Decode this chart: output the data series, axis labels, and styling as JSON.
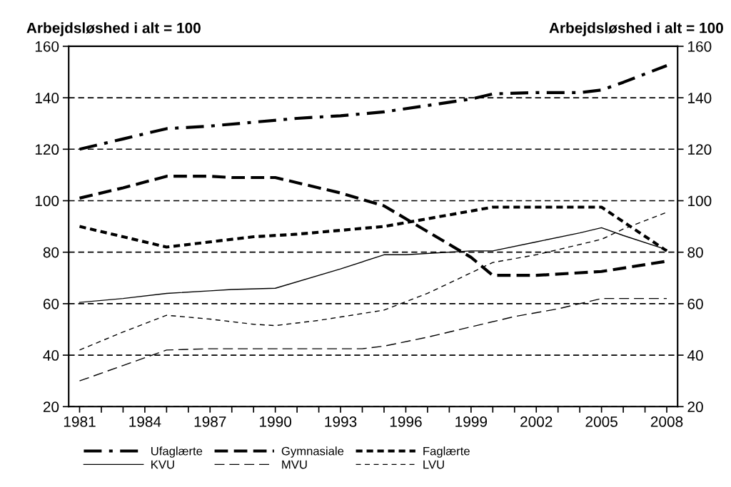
{
  "chart_data": {
    "type": "line",
    "ylabel": "Arbejdsløshed i alt = 100",
    "y2label": "Arbejdsløshed i alt = 100",
    "series": [
      {
        "name": "Ufaglærte",
        "color": "#000000",
        "line_style": "dashdot",
        "x": [
          1981,
          1983,
          1985,
          1987,
          1989,
          1991,
          1993,
          1995,
          1997,
          1999,
          2000,
          2002,
          2004,
          2005,
          2006,
          2008
        ],
        "values": [
          120,
          124,
          128,
          129,
          130.5,
          132,
          133,
          134.5,
          137,
          139.5,
          141.5,
          142,
          142,
          143,
          146,
          152.5
        ]
      },
      {
        "name": "Gymnasiale",
        "color": "#000000",
        "line_style": "dashed",
        "x": [
          1981,
          1983,
          1985,
          1987,
          1988,
          1990,
          1993,
          1995,
          1997,
          1999,
          2000,
          2002,
          2005,
          2008
        ],
        "values": [
          101,
          105,
          109.5,
          109.5,
          109,
          109,
          103,
          98,
          88,
          78,
          71,
          71,
          72.5,
          76.5
        ]
      },
      {
        "name": "Faglærte",
        "color": "#000000",
        "line_style": "dotted",
        "x": [
          1981,
          1983,
          1985,
          1987,
          1989,
          1991,
          1993,
          1995,
          1997,
          1999,
          2000,
          2005,
          2008
        ],
        "values": [
          90,
          86,
          82,
          84,
          86,
          87,
          88.5,
          90,
          93,
          96,
          97.5,
          97.5,
          80.5
        ]
      },
      {
        "name": "KVU",
        "color": "#000000",
        "line_style": "solid",
        "x": [
          1981,
          1983,
          1985,
          1987,
          1988,
          1990,
          1993,
          1995,
          1996,
          1999,
          2000,
          2002,
          2004,
          2005,
          2006,
          2008
        ],
        "values": [
          60.5,
          62,
          64,
          65,
          65.5,
          66,
          73.5,
          79,
          79,
          80.5,
          80.5,
          84,
          87.5,
          89.5,
          86.5,
          81
        ]
      },
      {
        "name": "MVU",
        "color": "#000000",
        "line_style": "dashed",
        "x": [
          1981,
          1983,
          1985,
          1987,
          1990,
          1994,
          1995,
          1997,
          1999,
          2001,
          2003,
          2005,
          2008
        ],
        "values": [
          30,
          36,
          42,
          42.5,
          42.5,
          42.5,
          43.5,
          47,
          51,
          55,
          58,
          62,
          62
        ]
      },
      {
        "name": "LVU",
        "color": "#000000",
        "line_style": "dotted",
        "x": [
          1981,
          1983,
          1985,
          1987,
          1989,
          1990,
          1992,
          1995,
          1997,
          1999,
          2000,
          2002,
          2005,
          2006,
          2008
        ],
        "values": [
          42,
          49,
          55.5,
          54,
          52,
          51.5,
          53.5,
          57.5,
          64,
          72,
          76,
          79,
          85,
          89,
          95.5
        ]
      }
    ],
    "xlim": [
      1980.5,
      2008.5
    ],
    "xticks": [
      1981,
      {
        "value": 1982,
        "label": null
      },
      {
        "value": 1983,
        "label": null
      },
      1984,
      {
        "value": 1985,
        "label": null
      },
      {
        "value": 1986,
        "label": null
      },
      1987,
      {
        "value": 1988,
        "label": null
      },
      {
        "value": 1989,
        "label": null
      },
      1990,
      {
        "value": 1991,
        "label": null
      },
      {
        "value": 1992,
        "label": null
      },
      1993,
      {
        "value": 1994,
        "label": null
      },
      {
        "value": 1995,
        "label": null
      },
      1996,
      {
        "value": 1997,
        "label": null
      },
      {
        "value": 1998,
        "label": null
      },
      1999,
      {
        "value": 2000,
        "label": null
      },
      {
        "value": 2001,
        "label": null
      },
      2002,
      {
        "value": 2003,
        "label": null
      },
      {
        "value": 2004,
        "label": null
      },
      2005,
      {
        "value": 2006,
        "label": null
      },
      {
        "value": 2007,
        "label": null
      },
      2008
    ],
    "ylim": [
      20,
      160
    ],
    "yticks": [
      20,
      40,
      60,
      80,
      100,
      120,
      140,
      160
    ],
    "y2lim": [
      20,
      160
    ],
    "y2ticks": [
      20,
      40,
      60,
      80,
      100,
      120,
      140,
      160
    ],
    "grid": "y",
    "legend": "bottom"
  }
}
